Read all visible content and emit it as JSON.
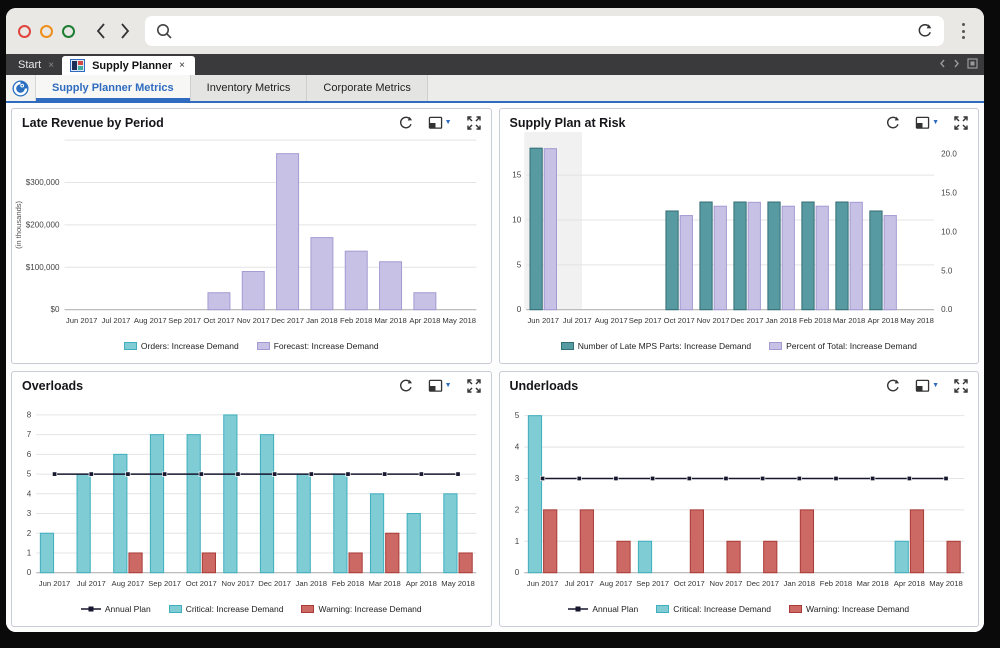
{
  "colors": {
    "accent_blue": "#2f6cc0",
    "tab_dark": "#3a3a3c",
    "topbar_bg": "#e9e8e5",
    "traffic_red": "#e0443c",
    "traffic_orange": "#ef8e1b",
    "traffic_green": "#1e7e34",
    "teal_light": "#7fccd5",
    "teal_light_border": "#3fafbe",
    "teal_dark": "#589aa1",
    "teal_dark_border": "#336e75",
    "purple": "#c7c2e5",
    "purple_border": "#a49bd2",
    "warning_red": "#cc6965",
    "warning_red_border": "#aa3c38",
    "annual_line": "#16162e"
  },
  "browser": {
    "search_value": "",
    "icons": [
      "back-icon",
      "forward-icon",
      "search-icon",
      "refresh-icon",
      "kebab-menu-icon"
    ]
  },
  "tab_strip": {
    "start_label": "Start",
    "active_label": "Supply Planner",
    "close_glyph": "×"
  },
  "subtabs": [
    {
      "label": "Supply Planner Metrics",
      "active": true
    },
    {
      "label": "Inventory Metrics",
      "active": false
    },
    {
      "label": "Corporate Metrics",
      "active": false
    }
  ],
  "panel_icons": [
    "refresh-icon",
    "layout-dropdown-icon",
    "expand-icon"
  ],
  "chart_data": [
    {
      "type": "bar",
      "title": "Late Revenue by Period",
      "ylabel": "(in thousands)",
      "categories": [
        "Jun 2017",
        "Jul 2017",
        "Aug 2017",
        "Sep 2017",
        "Oct 2017",
        "Nov 2017",
        "Dec 2017",
        "Jan 2018",
        "Feb 2018",
        "Mar 2018",
        "Apr 2018",
        "May 2018"
      ],
      "left_axis": {
        "max": 400000,
        "grid": [
          100000,
          200000,
          300000,
          400000
        ],
        "ticks": [
          {
            "v": 0,
            "label": "$0"
          },
          {
            "v": 100000,
            "label": "$100,000"
          },
          {
            "v": 200000,
            "label": "$200,000"
          },
          {
            "v": 300000,
            "label": "$300,000"
          }
        ]
      },
      "series": [
        {
          "name": "Orders: Increase Demand",
          "type": "bar",
          "fill": "#7fccd5",
          "stroke": "#3fafbe",
          "values": [
            0,
            0,
            0,
            0,
            0,
            0,
            0,
            0,
            0,
            0,
            0,
            0
          ]
        },
        {
          "name": "Forecast: Increase Demand",
          "type": "bar",
          "fill": "#c7c2e5",
          "stroke": "#a49bd2",
          "values": [
            0,
            0,
            0,
            0,
            40000,
            90000,
            368000,
            170000,
            138000,
            113000,
            40000,
            0
          ]
        }
      ],
      "legend_position": "bottom"
    },
    {
      "type": "bar",
      "title": "Supply Plan at Risk",
      "categories": [
        "Jun 2017",
        "Jul 2017",
        "Aug 2017",
        "Sep 2017",
        "Oct 2017",
        "Nov 2017",
        "Dec 2017",
        "Jan 2018",
        "Feb 2018",
        "Mar 2018",
        "Apr 2018",
        "May 2018"
      ],
      "highlight_category": "Jun 2017",
      "left_axis": {
        "max": 18.9,
        "grid": [
          5,
          10,
          15
        ],
        "ticks": [
          {
            "v": 0,
            "label": "0"
          },
          {
            "v": 5,
            "label": "5"
          },
          {
            "v": 10,
            "label": "10"
          },
          {
            "v": 15,
            "label": "15"
          }
        ]
      },
      "right_axis": {
        "max": 21.8,
        "ticks": [
          {
            "v": 0,
            "label": "0.0"
          },
          {
            "v": 5,
            "label": "5.0"
          },
          {
            "v": 10,
            "label": "10.0"
          },
          {
            "v": 15,
            "label": "15.0"
          },
          {
            "v": 20,
            "label": "20.0"
          }
        ]
      },
      "series": [
        {
          "name": "Number of Late MPS Parts: Increase Demand",
          "type": "bar",
          "axis": "left",
          "fill": "#589aa1",
          "stroke": "#336e75",
          "values": [
            18,
            0,
            0,
            0,
            11,
            12,
            12,
            12,
            12,
            12,
            11,
            0
          ]
        },
        {
          "name": "Percent of Total: Increase Demand",
          "type": "bar",
          "axis": "right",
          "fill": "#c7c2e5",
          "stroke": "#a49bd2",
          "values": [
            20.7,
            0,
            0,
            0,
            12.1,
            13.3,
            13.8,
            13.3,
            13.3,
            13.8,
            12.1,
            0
          ]
        }
      ],
      "legend_position": "bottom"
    },
    {
      "type": "bar",
      "title": "Overloads",
      "categories": [
        "Jun 2017",
        "Jul 2017",
        "Aug 2017",
        "Sep 2017",
        "Oct 2017",
        "Nov 2017",
        "Dec 2017",
        "Jan 2018",
        "Feb 2018",
        "Mar 2018",
        "Apr 2018",
        "May 2018"
      ],
      "left_axis": {
        "max": 8.6,
        "grid": [
          1,
          2,
          3,
          4,
          5,
          6,
          7,
          8
        ],
        "ticks": [
          {
            "v": 0,
            "label": "0"
          },
          {
            "v": 1,
            "label": "1"
          },
          {
            "v": 2,
            "label": "2"
          },
          {
            "v": 3,
            "label": "3"
          },
          {
            "v": 4,
            "label": "4"
          },
          {
            "v": 5,
            "label": "5"
          },
          {
            "v": 6,
            "label": "6"
          },
          {
            "v": 7,
            "label": "7"
          },
          {
            "v": 8,
            "label": "8"
          }
        ]
      },
      "series": [
        {
          "name": "Annual Plan",
          "type": "line",
          "color": "#16162e",
          "values": [
            5,
            5,
            5,
            5,
            5,
            5,
            5,
            5,
            5,
            5,
            5,
            5
          ]
        },
        {
          "name": "Critical: Increase Demand",
          "type": "bar",
          "fill": "#7fccd5",
          "stroke": "#3fafbe",
          "values": [
            2,
            5,
            6,
            7,
            7,
            8,
            7,
            5,
            5,
            4,
            3,
            4
          ]
        },
        {
          "name": "Warning: Increase Demand",
          "type": "bar",
          "fill": "#cc6965",
          "stroke": "#aa3c38",
          "values": [
            0,
            0,
            1,
            0,
            1,
            0,
            0,
            0,
            1,
            2,
            0,
            1
          ]
        }
      ],
      "legend_position": "bottom"
    },
    {
      "type": "bar",
      "title": "Underloads",
      "categories": [
        "Jun 2017",
        "Jul 2017",
        "Aug 2017",
        "Sep 2017",
        "Oct 2017",
        "Nov 2017",
        "Dec 2017",
        "Jan 2018",
        "Feb 2018",
        "Mar 2018",
        "Apr 2018",
        "May 2018"
      ],
      "left_axis": {
        "max": 5.4,
        "grid": [
          1,
          2,
          3,
          4,
          5
        ],
        "ticks": [
          {
            "v": 0,
            "label": "0"
          },
          {
            "v": 1,
            "label": "1"
          },
          {
            "v": 2,
            "label": "2"
          },
          {
            "v": 3,
            "label": "3"
          },
          {
            "v": 4,
            "label": "4"
          },
          {
            "v": 5,
            "label": "5"
          }
        ]
      },
      "series": [
        {
          "name": "Annual Plan",
          "type": "line",
          "color": "#16162e",
          "values": [
            3,
            3,
            3,
            3,
            3,
            3,
            3,
            3,
            3,
            3,
            3,
            3
          ]
        },
        {
          "name": "Critical: Increase Demand",
          "type": "bar",
          "fill": "#7fccd5",
          "stroke": "#3fafbe",
          "values": [
            5,
            0,
            0,
            1,
            0,
            0,
            0,
            0,
            0,
            0,
            1,
            0
          ]
        },
        {
          "name": "Warning: Increase Demand",
          "type": "bar",
          "fill": "#cc6965",
          "stroke": "#aa3c38",
          "values": [
            2,
            2,
            1,
            0,
            2,
            1,
            1,
            2,
            0,
            0,
            2,
            1
          ]
        }
      ],
      "legend_position": "bottom"
    }
  ]
}
